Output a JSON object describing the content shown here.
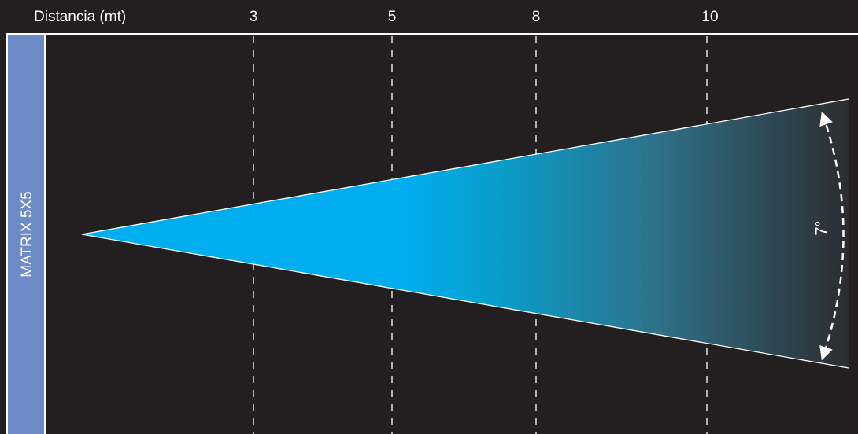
{
  "header": {
    "axis_label": "Distancia (mt)",
    "ticks": [
      "3",
      "5",
      "8",
      "10"
    ]
  },
  "side_label": "MATRIX 5X5",
  "angle_label": "7°",
  "colors": {
    "background": "#231f20",
    "side_bar": "#6c8bc7",
    "beam_start": "#00aeef",
    "beam_end": "#2d2c30",
    "lines": "#ffffff"
  }
}
